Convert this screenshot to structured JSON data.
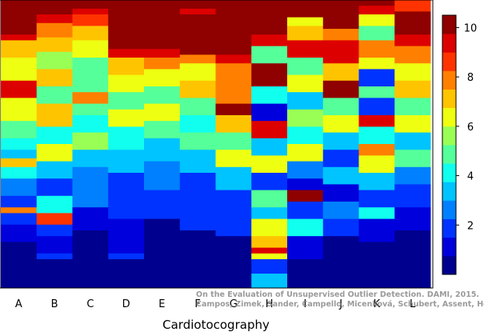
{
  "chart_data": {
    "type": "heatmap",
    "xlabel": "Cardiotocography",
    "categories": [
      "A",
      "B",
      "C",
      "D",
      "E",
      "F",
      "G",
      "H",
      "I",
      "J",
      "K",
      "L"
    ],
    "colorbar": {
      "ticks": [
        2,
        4,
        6,
        8,
        10
      ],
      "range": [
        0,
        10.5
      ],
      "colors": [
        "#00008f",
        "#0000dd",
        "#0033ff",
        "#0080ff",
        "#00c4ff",
        "#11ffee",
        "#55ff99",
        "#99ff55",
        "#eeff11",
        "#ffc400",
        "#ff8000",
        "#ff3300",
        "#dd0000",
        "#8f0000"
      ]
    },
    "rows": 100,
    "columns": [
      {
        "name": "A",
        "bands": [
          [
            0,
            8,
            10.5
          ],
          [
            8,
            12,
            10
          ],
          [
            12,
            14,
            9
          ],
          [
            14,
            20,
            7
          ],
          [
            20,
            28,
            6
          ],
          [
            28,
            34,
            9
          ],
          [
            34,
            42,
            6
          ],
          [
            42,
            48,
            5
          ],
          [
            48,
            52,
            4
          ],
          [
            52,
            55,
            3.5
          ],
          [
            55,
            58,
            7
          ],
          [
            58,
            62,
            4
          ],
          [
            62,
            68,
            2.5
          ],
          [
            68,
            72,
            1.5
          ],
          [
            72,
            74,
            8
          ],
          [
            74,
            78,
            2
          ],
          [
            78,
            84,
            1
          ],
          [
            84,
            100,
            0.5
          ]
        ]
      },
      {
        "name": "B",
        "bands": [
          [
            0,
            5,
            10.5
          ],
          [
            5,
            8,
            9.5
          ],
          [
            8,
            13,
            8
          ],
          [
            13,
            18,
            7
          ],
          [
            18,
            24,
            5.5
          ],
          [
            24,
            30,
            7
          ],
          [
            30,
            36,
            5
          ],
          [
            36,
            44,
            7
          ],
          [
            44,
            50,
            4
          ],
          [
            50,
            56,
            6
          ],
          [
            56,
            62,
            3
          ],
          [
            62,
            68,
            2
          ],
          [
            68,
            74,
            4
          ],
          [
            74,
            78,
            8.5
          ],
          [
            78,
            82,
            2
          ],
          [
            82,
            88,
            1
          ],
          [
            88,
            90,
            1.5
          ],
          [
            90,
            100,
            0.5
          ]
        ]
      },
      {
        "name": "C",
        "bands": [
          [
            0,
            3,
            10.5
          ],
          [
            3,
            5,
            9.5
          ],
          [
            5,
            9,
            8.5
          ],
          [
            9,
            14,
            7
          ],
          [
            14,
            20,
            6
          ],
          [
            20,
            26,
            5
          ],
          [
            26,
            32,
            4.5
          ],
          [
            32,
            36,
            8
          ],
          [
            36,
            40,
            5
          ],
          [
            40,
            46,
            4
          ],
          [
            46,
            52,
            5.5
          ],
          [
            52,
            58,
            3.5
          ],
          [
            58,
            72,
            2.5
          ],
          [
            72,
            80,
            1
          ],
          [
            80,
            90,
            0.7
          ],
          [
            90,
            100,
            0.5
          ]
        ]
      },
      {
        "name": "D",
        "bands": [
          [
            0,
            17,
            10.5
          ],
          [
            17,
            20,
            9
          ],
          [
            20,
            26,
            7
          ],
          [
            26,
            32,
            6
          ],
          [
            32,
            38,
            5
          ],
          [
            38,
            44,
            6
          ],
          [
            44,
            52,
            4
          ],
          [
            52,
            60,
            3
          ],
          [
            60,
            66,
            2
          ],
          [
            66,
            76,
            1.5
          ],
          [
            76,
            88,
            1
          ],
          [
            88,
            90,
            1.5
          ],
          [
            90,
            100,
            0.5
          ]
        ]
      },
      {
        "name": "E",
        "bands": [
          [
            0,
            17,
            10.5
          ],
          [
            17,
            20,
            9.5
          ],
          [
            20,
            24,
            7.5
          ],
          [
            24,
            30,
            6
          ],
          [
            30,
            36,
            5
          ],
          [
            36,
            42,
            6.5
          ],
          [
            42,
            48,
            4.5
          ],
          [
            48,
            56,
            3.5
          ],
          [
            56,
            66,
            2.5
          ],
          [
            66,
            76,
            1.5
          ],
          [
            76,
            100,
            0.5
          ]
        ]
      },
      {
        "name": "F",
        "bands": [
          [
            0,
            3,
            10.5
          ],
          [
            3,
            5,
            9.5
          ],
          [
            5,
            19,
            10.5
          ],
          [
            19,
            22,
            8
          ],
          [
            22,
            28,
            6
          ],
          [
            28,
            34,
            7
          ],
          [
            34,
            40,
            5
          ],
          [
            40,
            46,
            4
          ],
          [
            46,
            52,
            5
          ],
          [
            52,
            60,
            3
          ],
          [
            60,
            70,
            2
          ],
          [
            70,
            80,
            1.5
          ],
          [
            80,
            100,
            0.5
          ]
        ]
      },
      {
        "name": "G",
        "bands": [
          [
            0,
            19,
            10.5
          ],
          [
            19,
            22,
            9
          ],
          [
            22,
            30,
            8
          ],
          [
            30,
            36,
            7.5
          ],
          [
            36,
            40,
            10
          ],
          [
            40,
            46,
            7
          ],
          [
            46,
            52,
            5
          ],
          [
            52,
            58,
            6.5
          ],
          [
            58,
            66,
            3.5
          ],
          [
            66,
            74,
            2
          ],
          [
            74,
            82,
            1.5
          ],
          [
            82,
            100,
            0.5
          ]
        ]
      },
      {
        "name": "H",
        "bands": [
          [
            0,
            12,
            10.5
          ],
          [
            12,
            16,
            9.5
          ],
          [
            16,
            22,
            5
          ],
          [
            22,
            30,
            10
          ],
          [
            30,
            36,
            4
          ],
          [
            36,
            42,
            1
          ],
          [
            42,
            48,
            9.5
          ],
          [
            48,
            54,
            3
          ],
          [
            54,
            60,
            6
          ],
          [
            60,
            66,
            2
          ],
          [
            66,
            72,
            5
          ],
          [
            72,
            76,
            3
          ],
          [
            76,
            82,
            6.5
          ],
          [
            82,
            86,
            7
          ],
          [
            86,
            88,
            9
          ],
          [
            88,
            90,
            6
          ],
          [
            90,
            95,
            2
          ],
          [
            95,
            100,
            3
          ]
        ]
      },
      {
        "name": "I",
        "bands": [
          [
            0,
            6,
            10.5
          ],
          [
            6,
            9,
            6
          ],
          [
            9,
            14,
            7
          ],
          [
            14,
            20,
            9.5
          ],
          [
            20,
            26,
            5
          ],
          [
            26,
            32,
            6
          ],
          [
            32,
            38,
            3.5
          ],
          [
            38,
            44,
            5.5
          ],
          [
            44,
            50,
            4
          ],
          [
            50,
            56,
            6.5
          ],
          [
            56,
            62,
            2.5
          ],
          [
            62,
            66,
            1
          ],
          [
            66,
            70,
            10.5
          ],
          [
            70,
            76,
            2
          ],
          [
            76,
            82,
            4
          ],
          [
            82,
            90,
            1
          ],
          [
            90,
            100,
            0.5
          ]
        ]
      },
      {
        "name": "J",
        "bands": [
          [
            0,
            10,
            10.5
          ],
          [
            10,
            14,
            8
          ],
          [
            14,
            22,
            9
          ],
          [
            22,
            28,
            7
          ],
          [
            28,
            34,
            10
          ],
          [
            34,
            40,
            5
          ],
          [
            40,
            46,
            6
          ],
          [
            46,
            52,
            3
          ],
          [
            52,
            58,
            2
          ],
          [
            58,
            64,
            3.5
          ],
          [
            64,
            70,
            1
          ],
          [
            70,
            76,
            2.5
          ],
          [
            76,
            82,
            1.5
          ],
          [
            82,
            100,
            0.5
          ]
        ]
      },
      {
        "name": "K",
        "bands": [
          [
            0,
            2,
            10.5
          ],
          [
            2,
            5,
            9.5
          ],
          [
            5,
            9,
            6
          ],
          [
            9,
            14,
            5
          ],
          [
            14,
            20,
            8
          ],
          [
            20,
            24,
            6
          ],
          [
            24,
            30,
            1.5
          ],
          [
            30,
            34,
            5
          ],
          [
            34,
            40,
            2
          ],
          [
            40,
            44,
            9.5
          ],
          [
            44,
            50,
            4
          ],
          [
            50,
            54,
            8
          ],
          [
            54,
            60,
            6
          ],
          [
            60,
            66,
            3
          ],
          [
            66,
            72,
            2
          ],
          [
            72,
            76,
            4
          ],
          [
            76,
            84,
            1
          ],
          [
            84,
            100,
            0.5
          ]
        ]
      },
      {
        "name": "L",
        "bands": [
          [
            0,
            4,
            8.5
          ],
          [
            4,
            12,
            10.5
          ],
          [
            12,
            16,
            9.5
          ],
          [
            16,
            22,
            8
          ],
          [
            22,
            28,
            6
          ],
          [
            28,
            34,
            7
          ],
          [
            34,
            40,
            5
          ],
          [
            40,
            46,
            6
          ],
          [
            46,
            52,
            3.5
          ],
          [
            52,
            58,
            5
          ],
          [
            58,
            64,
            2.5
          ],
          [
            64,
            72,
            1.5
          ],
          [
            72,
            80,
            1
          ],
          [
            80,
            100,
            0.5
          ]
        ]
      }
    ]
  },
  "watermark": {
    "line1": "On the Evaluation of Unsupervised Outlier Detection. DAMI, 2015.",
    "line2": "Campos, Zimek, Sander, Campello, Micenková, Schubert, Assent, Houle"
  }
}
